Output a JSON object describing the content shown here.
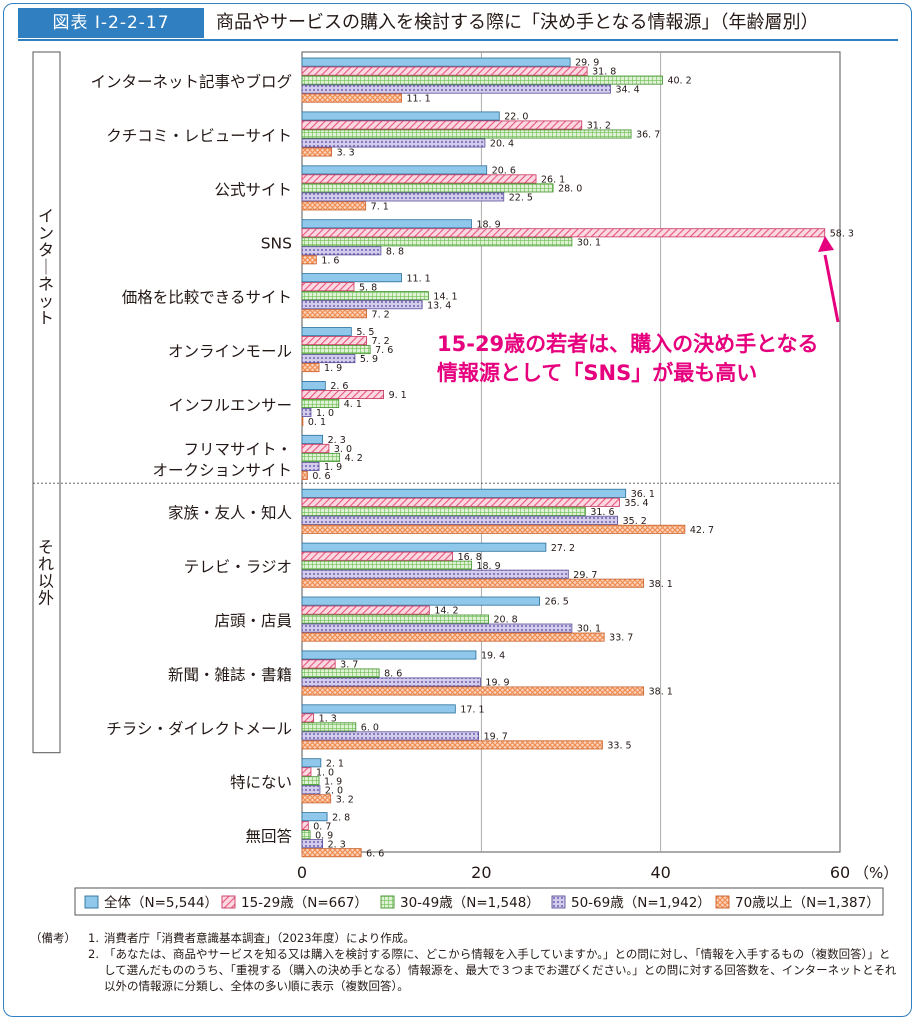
{
  "header": {
    "figure_number": "図表 I-2-2-17",
    "title": "商品やサービスの購入を検討する際に「決め手となる情報源」（年齢層別）"
  },
  "chart_data": {
    "type": "bar",
    "orientation": "horizontal",
    "categories": [
      "インターネット記事やブログ",
      "クチコミ・レビューサイト",
      "公式サイト",
      "SNS",
      "価格を比較できるサイト",
      "オンラインモール",
      "インフルエンサー",
      "フリマサイト・\nオークションサイト",
      "家族・友人・知人",
      "テレビ・ラジオ",
      "店頭・店員",
      "新聞・雑誌・書籍",
      "チラシ・ダイレクトメール",
      "特にない",
      "無回答"
    ],
    "groups": [
      {
        "label": "インターネット",
        "count": 8
      },
      {
        "label": "それ以外",
        "count": 5
      }
    ],
    "series": [
      {
        "name": "全体（N=5,544）",
        "color": "#8fc8ea",
        "pattern": "solid",
        "values": [
          29.9,
          22.0,
          20.6,
          18.9,
          11.1,
          5.5,
          2.6,
          2.3,
          36.1,
          27.2,
          26.5,
          19.4,
          17.1,
          2.1,
          2.8
        ]
      },
      {
        "name": "15-29歳（N=667）",
        "color": "#e9557d",
        "pattern": "diagonal",
        "values": [
          31.8,
          31.2,
          26.1,
          58.3,
          5.8,
          7.2,
          9.1,
          3.0,
          35.4,
          16.8,
          14.2,
          3.7,
          1.3,
          1.0,
          0.7
        ]
      },
      {
        "name": "30-49歳（N=1,548）",
        "color": "#6cbf4f",
        "pattern": "grid",
        "values": [
          40.2,
          36.7,
          28.0,
          30.1,
          14.1,
          7.6,
          4.1,
          4.2,
          31.6,
          18.9,
          20.8,
          8.6,
          6.0,
          1.9,
          0.9
        ]
      },
      {
        "name": "50-69歳（N=1,942）",
        "color": "#8f82c4",
        "pattern": "dots",
        "values": [
          34.4,
          20.4,
          22.5,
          8.8,
          13.4,
          5.9,
          1.0,
          1.9,
          35.2,
          29.7,
          30.1,
          19.9,
          19.7,
          2.0,
          2.3
        ]
      },
      {
        "name": "70歳以上（N=1,387）",
        "color": "#ef8a4d",
        "pattern": "cross",
        "values": [
          11.1,
          3.3,
          7.1,
          1.6,
          7.2,
          1.9,
          0.1,
          0.6,
          42.7,
          38.1,
          33.7,
          38.1,
          33.5,
          3.2,
          6.6
        ]
      }
    ],
    "value_labels": [
      [
        "29. 9",
        "22. 0",
        "20. 6",
        "18. 9",
        "11. 1",
        "5. 5",
        "2. 6",
        "2. 3",
        "36. 1",
        "27. 2",
        "26. 5",
        "19. 4",
        "17. 1",
        "2. 1",
        "2. 8"
      ],
      [
        "31. 8",
        "31. 2",
        "26. 1",
        "58. 3",
        "5. 8",
        "7. 2",
        "9. 1",
        "3. 0",
        "35. 4",
        "16. 8",
        "14. 2",
        "3. 7",
        "1. 3",
        "1. 0",
        "0. 7"
      ],
      [
        "40. 2",
        "36. 7",
        "28. 0",
        "30. 1",
        "14. 1",
        "7. 6",
        "4. 1",
        "4. 2",
        "31. 6",
        "18. 9",
        "20. 8",
        "8. 6",
        "6. 0",
        "1. 9",
        "0. 9"
      ],
      [
        "34. 4",
        "20. 4",
        "22. 5",
        "8. 8",
        "13. 4",
        "5. 9",
        "1. 0",
        "1. 9",
        "35. 2",
        "29. 7",
        "30. 1",
        "19. 9",
        "19. 7",
        "2. 0",
        "2. 3"
      ],
      [
        "11. 1",
        "3. 3",
        "7. 1",
        "1. 6",
        "7. 2",
        "1. 9",
        "0. 1",
        "0. 6",
        "42. 7",
        "38. 1",
        "33. 7",
        "38. 1",
        "33. 5",
        "3. 2",
        "6. 6"
      ]
    ],
    "xlim": [
      0,
      60
    ],
    "xticks": [
      "0",
      "20",
      "40",
      "60"
    ],
    "x_unit": "（%）",
    "grid": true,
    "legend_position": "bottom",
    "annotation": {
      "line1": "15-29歳の若者は、購入の決め手となる",
      "line2": "情報源として「SNS」が最も高い",
      "color": "#e6007e",
      "points_to": "SNS 15-29歳"
    }
  },
  "notes": {
    "tag": "（備考）",
    "items": [
      {
        "num": "1.",
        "text": "消費者庁「消費者意識基本調査」（2023年度）により作成。"
      },
      {
        "num": "2.",
        "text": "「あなたは、商品やサービスを知る又は購入を検討する際に、どこから情報を入手していますか。」との問に対し、「情報を入手するもの（複数回答）」として選んだもののうち、「重視する（購入の決め手となる）情報源を、最大で３つまでお選びください。」との問に対する回答数を、インターネットとそれ以外の情報源に分類し、全体の多い順に表示（複数回答）。"
      }
    ]
  }
}
